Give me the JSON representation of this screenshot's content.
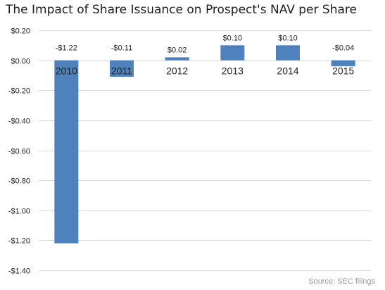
{
  "chart_data": {
    "type": "bar",
    "title": "The Impact of Share Issuance on Prospect's NAV per Share",
    "source": "Source: SEC filings",
    "categories": [
      "2010",
      "2011",
      "2012",
      "2013",
      "2014",
      "2015"
    ],
    "values": [
      -1.22,
      -0.11,
      0.02,
      0.1,
      0.1,
      -0.04
    ],
    "data_labels": [
      "-$1.22",
      "-$0.11",
      "$0.02",
      "$0.10",
      "$0.10",
      "-$0.04"
    ],
    "y_ticks": [
      0.2,
      0.0,
      -0.2,
      -0.4,
      -0.6,
      -0.8,
      -1.0,
      -1.2,
      -1.4
    ],
    "y_tick_labels": [
      "$0.20",
      "$0.00",
      "-$0.20",
      "-$0.40",
      "-$0.60",
      "-$0.80",
      "-$1.00",
      "-$1.20",
      "-$1.40"
    ],
    "ylim": [
      -1.4,
      0.2
    ],
    "xlabel": "",
    "ylabel": "",
    "grid": true,
    "legend": "none",
    "bar_color": "#4f81bd"
  }
}
